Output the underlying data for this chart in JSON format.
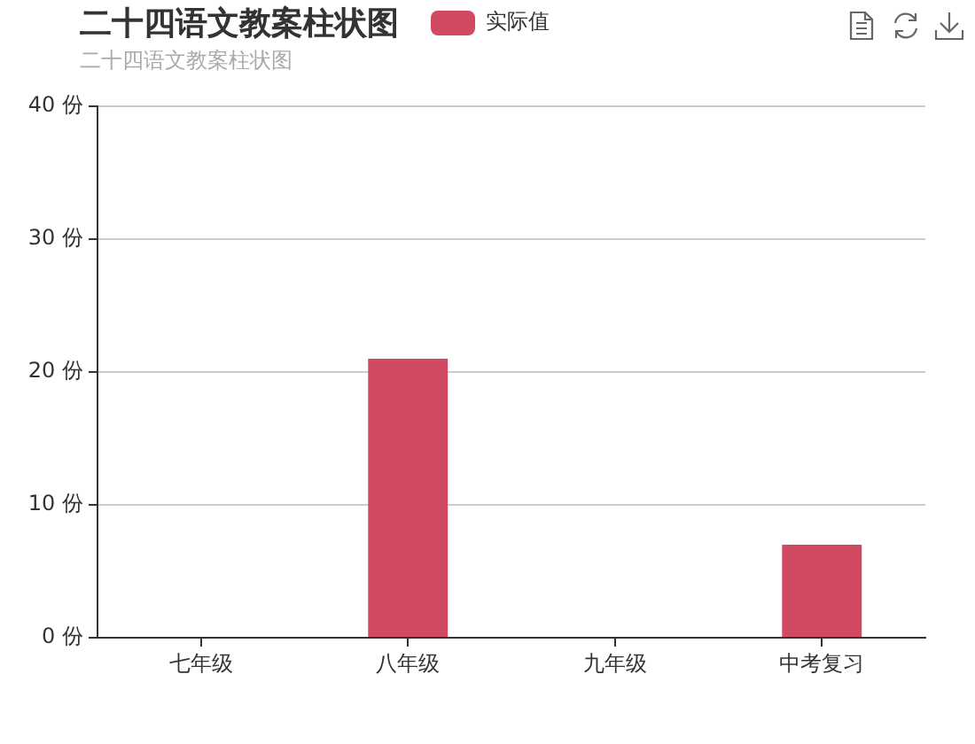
{
  "chart_data": {
    "type": "bar",
    "title": "二十四语文教案柱状图",
    "subtitle": "二十四语文教案柱状图",
    "categories": [
      "七年级",
      "八年级",
      "九年级",
      "中考复习"
    ],
    "series": [
      {
        "name": "实际值",
        "color": "#d14a61",
        "values": [
          0,
          21,
          0,
          7
        ]
      }
    ],
    "ylim": [
      0,
      40
    ],
    "yticks": [
      {
        "value": 0,
        "label": "0 份"
      },
      {
        "value": 10,
        "label": "10 份"
      },
      {
        "value": 20,
        "label": "20 份"
      },
      {
        "value": 30,
        "label": "30 份"
      },
      {
        "value": 40,
        "label": "40 份"
      }
    ],
    "grid": "y",
    "legend": "top"
  }
}
